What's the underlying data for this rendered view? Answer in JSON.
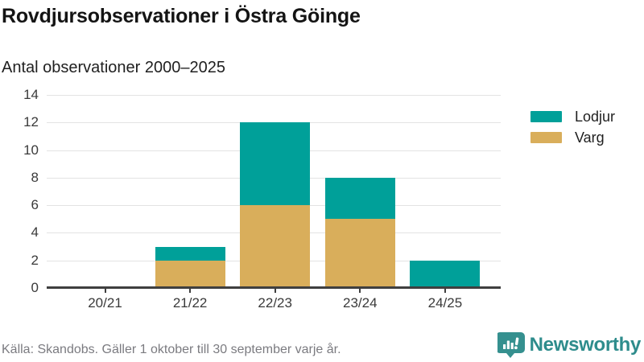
{
  "header": {
    "title": "Rovdjursobservationer i Östra Göinge",
    "subtitle": "Antal observationer 2000–2025"
  },
  "chart_data": {
    "type": "bar",
    "stacked": true,
    "categories": [
      "20/21",
      "21/22",
      "22/23",
      "23/24",
      "24/25"
    ],
    "series": [
      {
        "name": "Lodjur",
        "color": "#00a099",
        "values": [
          0,
          1,
          6,
          3,
          2
        ]
      },
      {
        "name": "Varg",
        "color": "#d9ae5b",
        "values": [
          0,
          2,
          6,
          5,
          0
        ]
      }
    ],
    "stack_bottom_to_top": [
      "Varg",
      "Lodjur"
    ],
    "title": "Rovdjursobservationer i Östra Göinge",
    "xlabel": "",
    "ylabel": "Antal observationer",
    "ylim": [
      0,
      14
    ],
    "yticks": [
      0,
      2,
      4,
      6,
      8,
      10,
      12,
      14
    ],
    "grid": true,
    "legend_position": "right"
  },
  "footer": {
    "source": "Källa: Skandobs. Gäller 1 oktober till 30 september varje år.",
    "brand": "Newsworthy"
  },
  "colors": {
    "lodjur": "#00a099",
    "varg": "#d9ae5b",
    "gridline": "#e3e3e3",
    "axis": "#3f3f3f",
    "axis_text": "#3a3a3a",
    "title_text": "#141414",
    "source_text": "#7b7b80",
    "brand_teal": "#2e8c8c"
  }
}
